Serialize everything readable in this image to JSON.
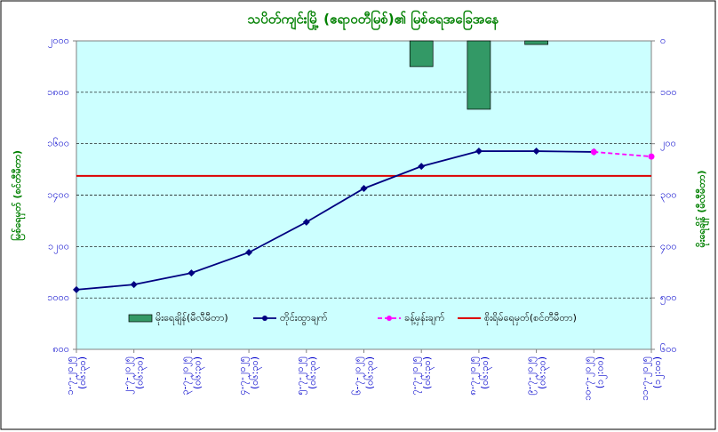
{
  "chart_data": {
    "type": "combo",
    "title": "သပိတ်ကျင်းမြို့ (ဧရာဝတီမြစ်)၏ မြစ်ရေအခြေအနေ",
    "y_label": "မြစ်ရေမှတ် (စင်တီမီတာ)",
    "y2_label": "မိုးရေချိန် (မီလီမီတာ)",
    "categories": [
      "၁-၇-၂၀၂၅",
      "၂-၇-၂၀၂၅",
      "၃-၇-၂၀၂၅",
      "၄-၇-၂၀၂၅",
      "၅-၇-၂၀၂၅",
      "၆-၇-၂၀၂၅",
      "၇-၇-၂၀၂၅",
      "၈-၇-၂၀၂၅",
      "၉-၇-၂၀၂၅",
      "၁၀-၇-၂၀၂၅",
      "၁၁-၇-၂၀၂၅"
    ],
    "category_times": [
      "(၀၆:၃၀)",
      "(၀၆:၃၀)",
      "(၀၆:၃၀)",
      "(၀၆:၃၀)",
      "(၀၆:၃၀)",
      "(၀၆:၃၀)",
      "(၀၆:၃၀)",
      "(၀၆:၃၀)",
      "(၀၆:၃၀)",
      "(၁၂:၀၀)",
      "(၁၂:၀၀)"
    ],
    "ylim": [
      800,
      2000
    ],
    "yticks": [
      {
        "value": 800,
        "label": "၈၀၀"
      },
      {
        "value": 1000,
        "label": "၁၀၀၀"
      },
      {
        "value": 1200,
        "label": "၁၂၀၀"
      },
      {
        "value": 1400,
        "label": "၁၄၀၀"
      },
      {
        "value": 1600,
        "label": "၁၆၀၀"
      },
      {
        "value": 1800,
        "label": "၁၈၀၀"
      },
      {
        "value": 2000,
        "label": "၂၀၀၀"
      }
    ],
    "y2lim": [
      600,
      0
    ],
    "y2ticks": [
      {
        "value": 0,
        "label": "၀"
      },
      {
        "value": 100,
        "label": "၁၀၀"
      },
      {
        "value": 200,
        "label": "၂၀၀"
      },
      {
        "value": 300,
        "label": "၃၀၀"
      },
      {
        "value": 400,
        "label": "၄၀၀"
      },
      {
        "value": 500,
        "label": "၅၀၀"
      },
      {
        "value": 600,
        "label": "၆၀၀"
      }
    ],
    "grid": true,
    "series": [
      {
        "name": "မိုးရေချိန်(မီလီမီတာ)",
        "type": "bar",
        "axis": "y2",
        "color": "#339966",
        "values": [
          null,
          null,
          null,
          null,
          null,
          null,
          50,
          133,
          7,
          null,
          null
        ]
      },
      {
        "name": "တိုင်းထွာချက်",
        "type": "line",
        "color": "#000080",
        "values": [
          1032,
          1052,
          1097,
          1177,
          1295,
          1426,
          1512,
          1571,
          1571,
          1568,
          null
        ]
      },
      {
        "name": "ခန့်မှန်းချက်",
        "type": "dashed",
        "color": "#ff00ff",
        "values": [
          null,
          null,
          null,
          null,
          null,
          null,
          null,
          null,
          null,
          1568,
          1550
        ]
      }
    ],
    "danger_level": {
      "name": "စိုးရိမ်ရေမှတ်(စင်တီမီတာ)",
      "color": "#dd0000",
      "value": 1475
    }
  }
}
